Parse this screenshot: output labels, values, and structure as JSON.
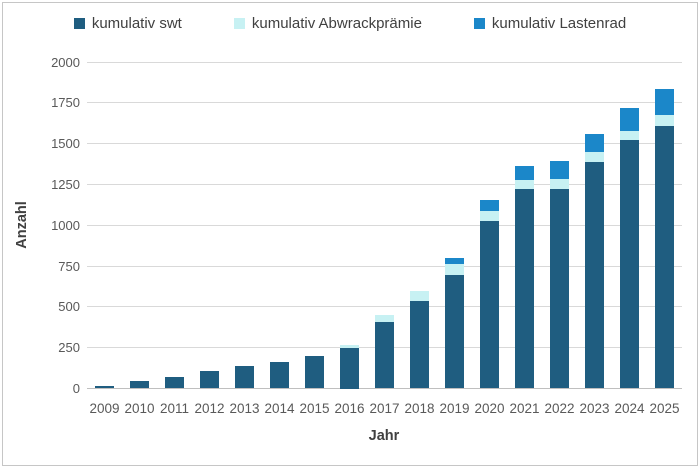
{
  "chart_data": {
    "type": "bar",
    "stacked": true,
    "title": "",
    "xlabel": "Jahr",
    "ylabel": "Anzahl",
    "categories": [
      "2009",
      "2010",
      "2011",
      "2012",
      "2013",
      "2014",
      "2015",
      "2016",
      "2017",
      "2018",
      "2019",
      "2020",
      "2021",
      "2022",
      "2023",
      "2024",
      "2025"
    ],
    "series": [
      {
        "name": "kumulativ swt",
        "color": "#1f5d80",
        "values": [
          15,
          45,
          70,
          105,
          135,
          160,
          200,
          250,
          405,
          535,
          695,
          1025,
          1220,
          1225,
          1390,
          1520,
          1610
        ]
      },
      {
        "name": "kumulativ Abwrackprämie",
        "color": "#c7f1f3",
        "values": [
          0,
          0,
          0,
          0,
          0,
          0,
          0,
          15,
          45,
          60,
          65,
          60,
          55,
          60,
          60,
          60,
          65
        ]
      },
      {
        "name": "kumulativ Lastenrad",
        "color": "#1b87c9",
        "values": [
          0,
          0,
          0,
          0,
          0,
          0,
          0,
          0,
          0,
          0,
          40,
          70,
          85,
          110,
          110,
          140,
          160
        ]
      }
    ],
    "ylim": [
      0,
      2000
    ],
    "ytick_step": 250,
    "yticks": [
      "0",
      "250",
      "500",
      "750",
      "1000",
      "1250",
      "1500",
      "1750",
      "2000"
    ],
    "grid": true,
    "legend_position": "top"
  },
  "colors": {
    "grid": "#d9d9d9",
    "axis_line": "#bfbfbf",
    "tick_text": "#595959",
    "axis_title_text": "#404040",
    "legend_text": "#404040",
    "frame_border": "#c6c6c6",
    "background": "#ffffff"
  }
}
